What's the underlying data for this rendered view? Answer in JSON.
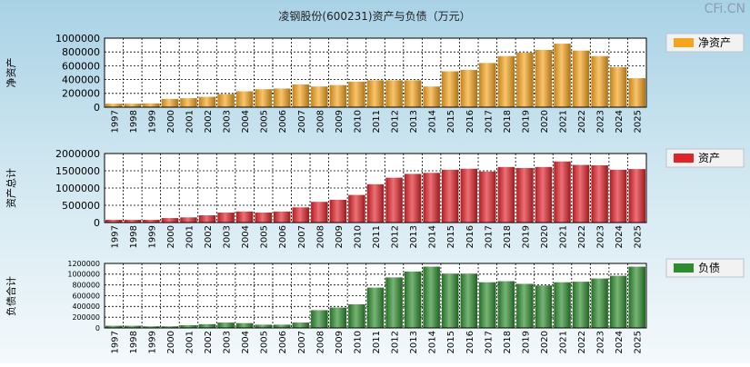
{
  "title": "凌钢股份(600231)资产与负债（万元）",
  "watermark": "CFi.CN",
  "chart_data": [
    {
      "type": "bar",
      "ylabel": "净资产",
      "legend": "净资产",
      "legend_position": "right",
      "color": "#f5a41e",
      "grid": true,
      "ylim": [
        0,
        1000000
      ],
      "yticks": [
        0,
        200000,
        400000,
        600000,
        800000,
        1000000
      ],
      "categories": [
        "1997",
        "1998",
        "1999",
        "2000",
        "2001",
        "2002",
        "2003",
        "2004",
        "2005",
        "2006",
        "2007",
        "2008",
        "2009",
        "2010",
        "2011",
        "2012",
        "2013",
        "2014",
        "2015",
        "2016",
        "2017",
        "2018",
        "2019",
        "2020",
        "2021",
        "2022",
        "2023",
        "2024",
        "2025"
      ],
      "values": [
        50000,
        50000,
        55000,
        120000,
        130000,
        150000,
        190000,
        230000,
        260000,
        270000,
        330000,
        300000,
        320000,
        370000,
        390000,
        390000,
        390000,
        300000,
        520000,
        540000,
        640000,
        740000,
        790000,
        830000,
        920000,
        820000,
        740000,
        580000,
        420000
      ]
    },
    {
      "type": "bar",
      "ylabel": "资产总计",
      "legend": "资产",
      "legend_position": "right",
      "color": "#e0232a",
      "grid": true,
      "ylim": [
        0,
        2000000
      ],
      "yticks": [
        0,
        500000,
        1000000,
        1500000,
        2000000
      ],
      "categories": [
        "1997",
        "1998",
        "1999",
        "2000",
        "2001",
        "2002",
        "2003",
        "2004",
        "2005",
        "2006",
        "2007",
        "2008",
        "2009",
        "2010",
        "2011",
        "2012",
        "2013",
        "2014",
        "2015",
        "2016",
        "2017",
        "2018",
        "2019",
        "2020",
        "2021",
        "2022",
        "2023",
        "2024",
        "2025"
      ],
      "values": [
        80000,
        80000,
        80000,
        130000,
        150000,
        210000,
        290000,
        320000,
        290000,
        320000,
        440000,
        600000,
        660000,
        800000,
        1110000,
        1300000,
        1410000,
        1440000,
        1530000,
        1560000,
        1480000,
        1610000,
        1580000,
        1610000,
        1770000,
        1670000,
        1660000,
        1530000,
        1550000
      ]
    },
    {
      "type": "bar",
      "ylabel": "负债合计",
      "legend": "负债",
      "legend_position": "right",
      "color": "#2e8b2e",
      "grid": true,
      "ylim": [
        0,
        1200000
      ],
      "yticks": [
        0,
        200000,
        400000,
        600000,
        800000,
        1000000,
        1200000
      ],
      "categories": [
        "1997",
        "1998",
        "1999",
        "2000",
        "2001",
        "2002",
        "2003",
        "2004",
        "2005",
        "2006",
        "2007",
        "2008",
        "2009",
        "2010",
        "2011",
        "2012",
        "2013",
        "2014",
        "2015",
        "2016",
        "2017",
        "2018",
        "2019",
        "2020",
        "2021",
        "2022",
        "2023",
        "2024",
        "2025"
      ],
      "values": [
        40000,
        40000,
        30000,
        30000,
        50000,
        70000,
        100000,
        90000,
        60000,
        60000,
        100000,
        330000,
        380000,
        440000,
        750000,
        940000,
        1050000,
        1140000,
        1010000,
        1010000,
        850000,
        870000,
        820000,
        790000,
        850000,
        860000,
        920000,
        970000,
        1140000
      ]
    }
  ]
}
